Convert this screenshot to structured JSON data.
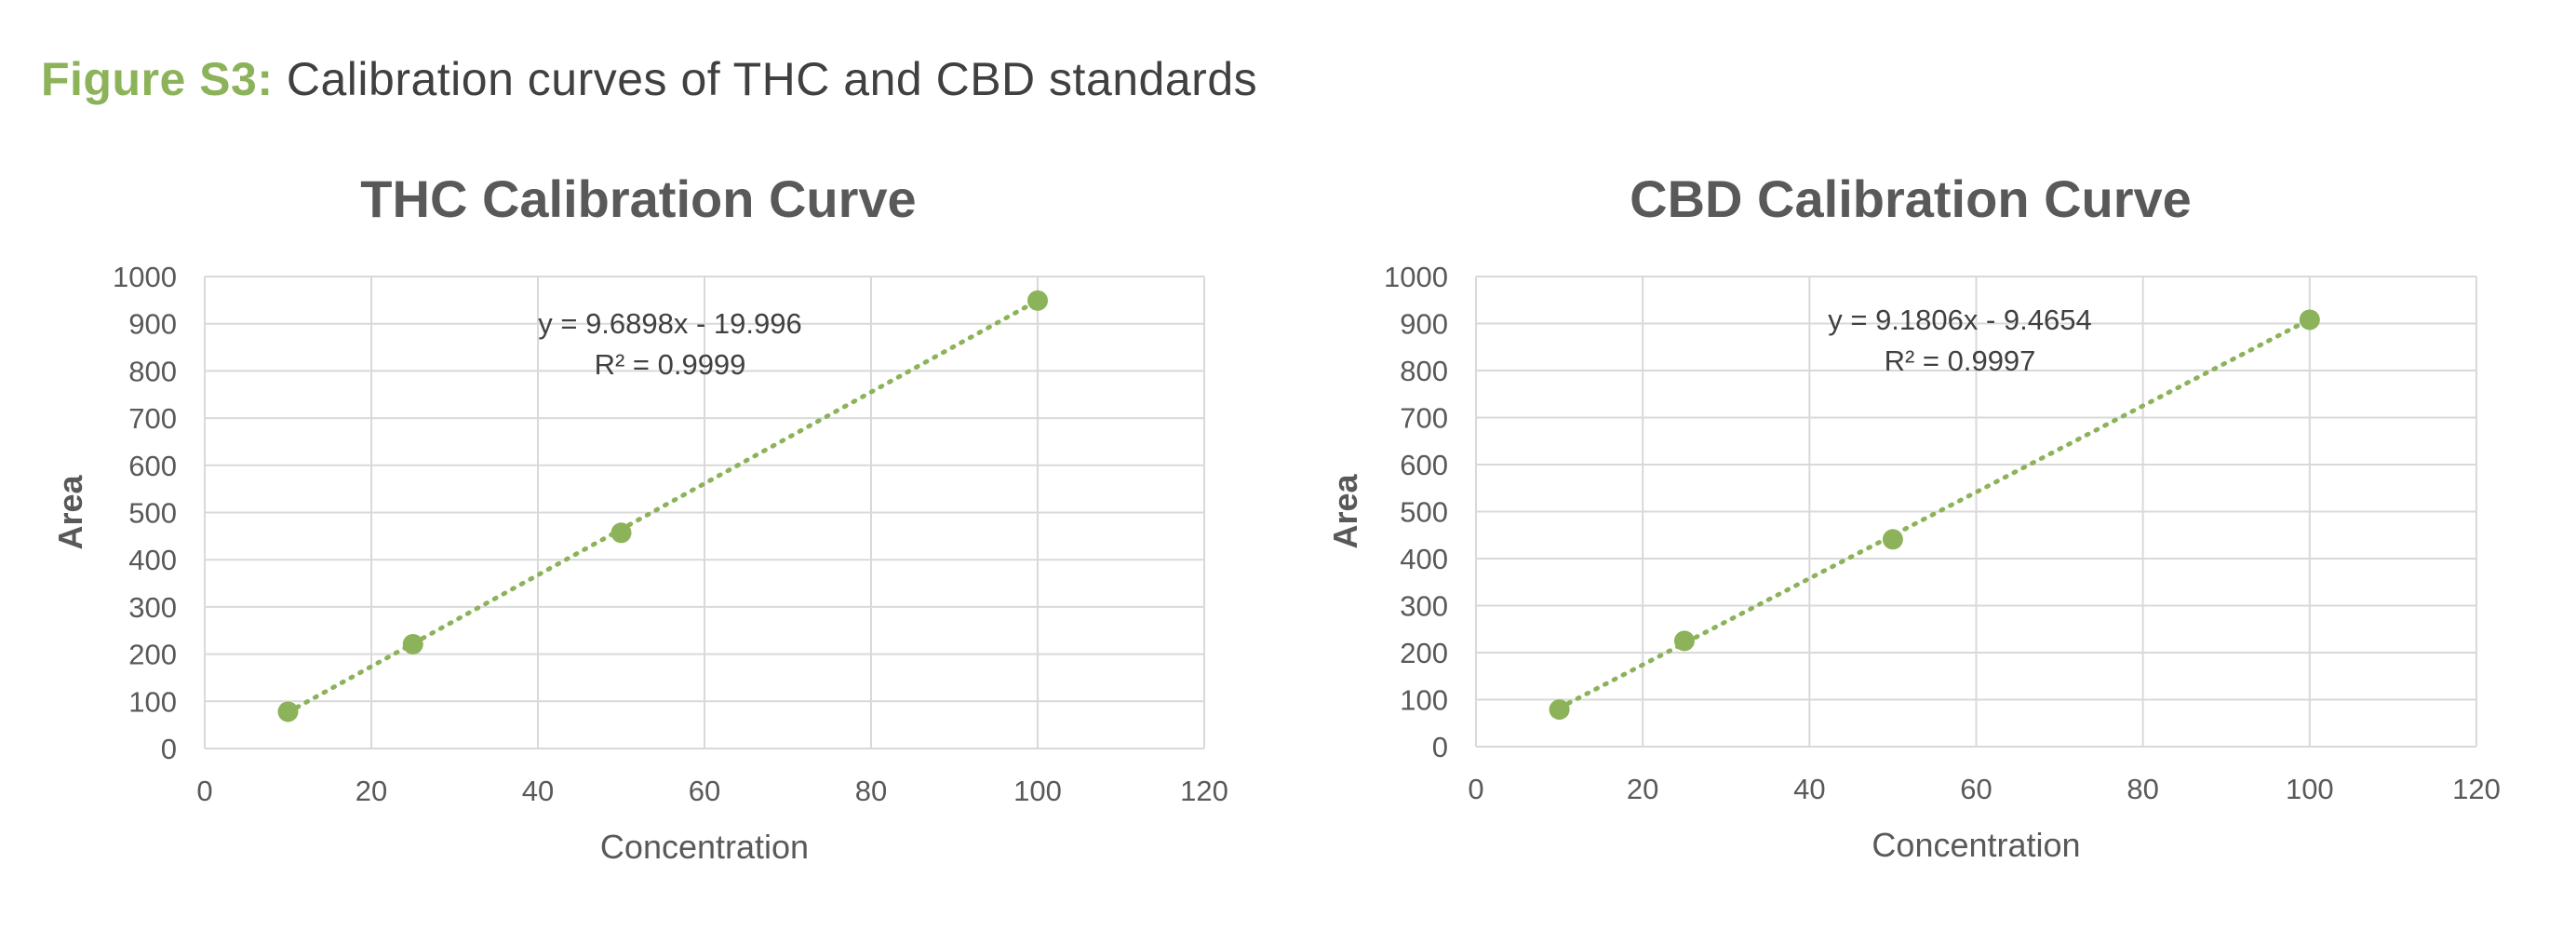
{
  "figure": {
    "label": "Figure S3:",
    "caption": " Calibration curves of THC and CBD standards"
  },
  "colors": {
    "accent": "#8CB35A",
    "text": "#404040",
    "axis_text": "#595959",
    "grid": "#D9D9D9"
  },
  "chart_data": [
    {
      "type": "scatter",
      "title": "THC Calibration Curve",
      "xlabel": "Concentration",
      "ylabel": "Area",
      "xlim": [
        0,
        120
      ],
      "ylim": [
        0,
        1000
      ],
      "xticks": [
        0,
        20,
        40,
        60,
        80,
        100,
        120
      ],
      "yticks": [
        0,
        100,
        200,
        300,
        400,
        500,
        600,
        700,
        800,
        900,
        1000
      ],
      "grid": true,
      "series": [
        {
          "x": [
            10,
            25,
            50,
            100
          ],
          "y": [
            78,
            221,
            457,
            949
          ],
          "marker_color": "#8CB35A"
        }
      ],
      "trendline": {
        "type": "linear",
        "slope": 9.6898,
        "intercept": -19.996,
        "x_range": [
          10,
          100
        ],
        "style": "dotted",
        "equation": "y = 9.6898x - 19.996",
        "r2": "R² = 0.9999"
      }
    },
    {
      "type": "scatter",
      "title": "CBD Calibration Curve",
      "xlabel": "Concentration",
      "ylabel": "Area",
      "xlim": [
        0,
        120
      ],
      "ylim": [
        0,
        1000
      ],
      "xticks": [
        0,
        20,
        40,
        60,
        80,
        100,
        120
      ],
      "yticks": [
        0,
        100,
        200,
        300,
        400,
        500,
        600,
        700,
        800,
        900,
        1000
      ],
      "grid": true,
      "series": [
        {
          "x": [
            10,
            25,
            50,
            100
          ],
          "y": [
            79,
            225,
            441,
            908
          ],
          "marker_color": "#8CB35A"
        }
      ],
      "trendline": {
        "type": "linear",
        "slope": 9.1806,
        "intercept": -9.4654,
        "x_range": [
          10,
          100
        ],
        "style": "dotted",
        "equation": "y = 9.1806x - 9.4654",
        "r2": "R² = 0.9997"
      }
    }
  ]
}
